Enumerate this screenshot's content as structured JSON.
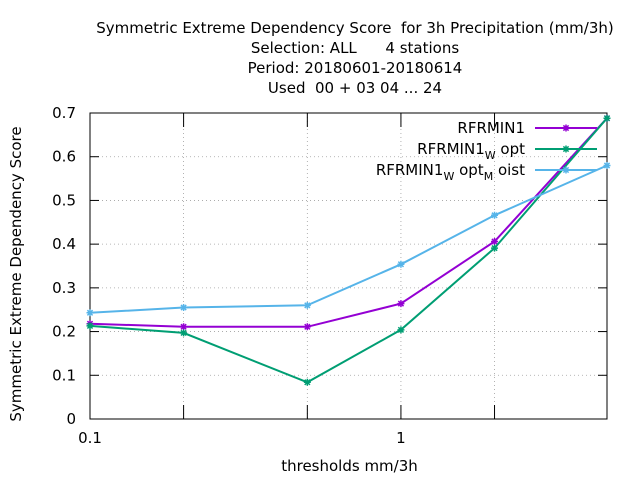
{
  "chart_data": {
    "type": "line",
    "title_lines": [
      "Symmetric Extreme Dependency Score  for 3h Precipitation (mm/3h)",
      "Selection: ALL      4 stations",
      "Period: 20180601-20180614",
      "Used  00 + 03 04 ... 24"
    ],
    "xlabel": "thresholds mm/3h",
    "ylabel": "Symmetric Extreme Dependency Score",
    "xscale": "log",
    "xlim": [
      0.1,
      4.6
    ],
    "ylim": [
      0,
      0.7
    ],
    "x_ticks": [
      0.1,
      1
    ],
    "x_tick_labels": [
      "0.1",
      "1"
    ],
    "y_ticks": [
      0,
      0.1,
      0.2,
      0.3,
      0.4,
      0.5,
      0.6,
      0.7
    ],
    "y_tick_labels": [
      "0",
      "0.1",
      "0.2",
      "0.3",
      "0.4",
      "0.5",
      "0.6",
      "0.7"
    ],
    "grid": true,
    "legend_position": "top-right",
    "x": [
      0.1,
      0.2,
      0.5,
      1.0,
      2.0,
      4.6
    ],
    "series": [
      {
        "name": "RFRMIN1",
        "legend": {
          "base": "RFRMIN1",
          "parts": []
        },
        "color": "#9400d3",
        "values": [
          0.218,
          0.211,
          0.211,
          0.264,
          0.406,
          0.688
        ]
      },
      {
        "name": "RFRMIN1_W opt",
        "legend": {
          "base": "RFRMIN1",
          "parts": [
            [
              "W",
              " opt"
            ]
          ]
        },
        "color": "#009e73",
        "values": [
          0.213,
          0.197,
          0.084,
          0.204,
          0.391,
          0.688
        ]
      },
      {
        "name": "RFRMIN1_W opt_M oist",
        "legend": {
          "base": "RFRMIN1",
          "parts": [
            [
              "W",
              " opt"
            ],
            [
              "M",
              " oist"
            ]
          ]
        },
        "color": "#56b4e9",
        "values": [
          0.243,
          0.255,
          0.26,
          0.354,
          0.466,
          0.58
        ]
      }
    ]
  }
}
